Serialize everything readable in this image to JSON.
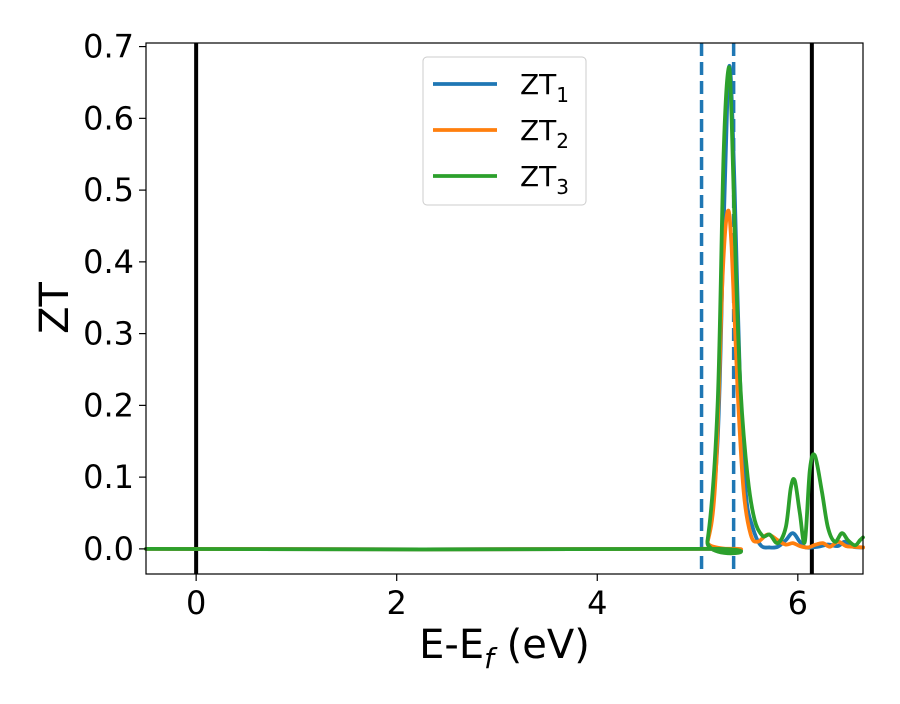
{
  "chart_data": {
    "type": "line",
    "xlabel": "E-E",
    "xlabel_sub": "f",
    "xlabel_suffix": " (eV)",
    "ylabel": "ZT",
    "xlim": [
      -0.5,
      6.65
    ],
    "ylim": [
      -0.035,
      0.705
    ],
    "xticks": [
      0,
      2,
      4,
      6
    ],
    "xtick_labels": [
      "0",
      "2",
      "4",
      "6"
    ],
    "yticks": [
      0.0,
      0.1,
      0.2,
      0.3,
      0.4,
      0.5,
      0.6,
      0.7
    ],
    "ytick_labels": [
      "0.0",
      "0.1",
      "0.2",
      "0.3",
      "0.4",
      "0.5",
      "0.6",
      "0.7"
    ],
    "legend_position": "top-center",
    "vertical_lines": [
      {
        "x": 0.0,
        "style": "solid",
        "color": "#000000"
      },
      {
        "x": 6.14,
        "style": "solid",
        "color": "#000000"
      },
      {
        "x": 5.04,
        "style": "dashed",
        "color": "#1f77b4"
      },
      {
        "x": 5.36,
        "style": "dashed",
        "color": "#1f77b4"
      }
    ],
    "series": [
      {
        "name": "ZT",
        "name_sub": "1",
        "color": "#1f77b4",
        "x": [
          -0.5,
          5.0,
          5.1,
          5.2,
          5.26,
          5.3,
          5.33,
          5.37,
          5.42,
          5.48,
          5.55,
          5.63,
          5.72,
          5.8,
          5.88,
          5.95,
          6.02,
          6.08,
          6.2,
          6.3,
          6.4,
          6.47,
          6.55,
          6.65
        ],
        "y": [
          0.0,
          0.0,
          0.01,
          0.15,
          0.45,
          0.64,
          0.66,
          0.5,
          0.25,
          0.08,
          0.03,
          0.005,
          0.002,
          0.003,
          0.012,
          0.022,
          0.01,
          0.002,
          0.003,
          0.006,
          0.004,
          0.01,
          0.003,
          0.002
        ]
      },
      {
        "name": "ZT",
        "name_sub": "2",
        "color": "#ff7f0e",
        "x": [
          -0.5,
          5.0,
          5.1,
          5.18,
          5.25,
          5.3,
          5.34,
          5.4,
          5.46,
          5.53,
          5.6,
          5.7,
          5.8,
          5.88,
          5.95,
          6.02,
          6.1,
          6.18,
          6.25,
          6.32,
          6.4,
          6.48,
          6.55,
          6.65
        ],
        "y": [
          0.0,
          0.0,
          0.01,
          0.1,
          0.38,
          0.47,
          0.42,
          0.22,
          0.08,
          0.02,
          0.01,
          0.02,
          0.012,
          0.006,
          0.008,
          0.004,
          0.002,
          0.006,
          0.008,
          0.003,
          0.01,
          0.004,
          0.003,
          0.002
        ]
      },
      {
        "name": "ZT",
        "name_sub": "3",
        "color": "#2ca02c",
        "x": [
          -0.5,
          5.0,
          5.1,
          5.2,
          5.26,
          5.31,
          5.34,
          5.38,
          5.43,
          5.5,
          5.57,
          5.65,
          5.72,
          5.8,
          5.88,
          5.93,
          5.97,
          6.02,
          6.07,
          6.12,
          6.17,
          6.24,
          6.3,
          6.37,
          6.44,
          6.5,
          6.57,
          6.62,
          6.65
        ],
        "y": [
          0.0,
          0.0,
          0.012,
          0.2,
          0.55,
          0.67,
          0.6,
          0.4,
          0.22,
          0.1,
          0.04,
          0.018,
          0.02,
          0.008,
          0.03,
          0.085,
          0.095,
          0.05,
          0.01,
          0.11,
          0.13,
          0.08,
          0.03,
          0.01,
          0.022,
          0.012,
          0.005,
          0.012,
          0.016
        ]
      }
    ]
  }
}
